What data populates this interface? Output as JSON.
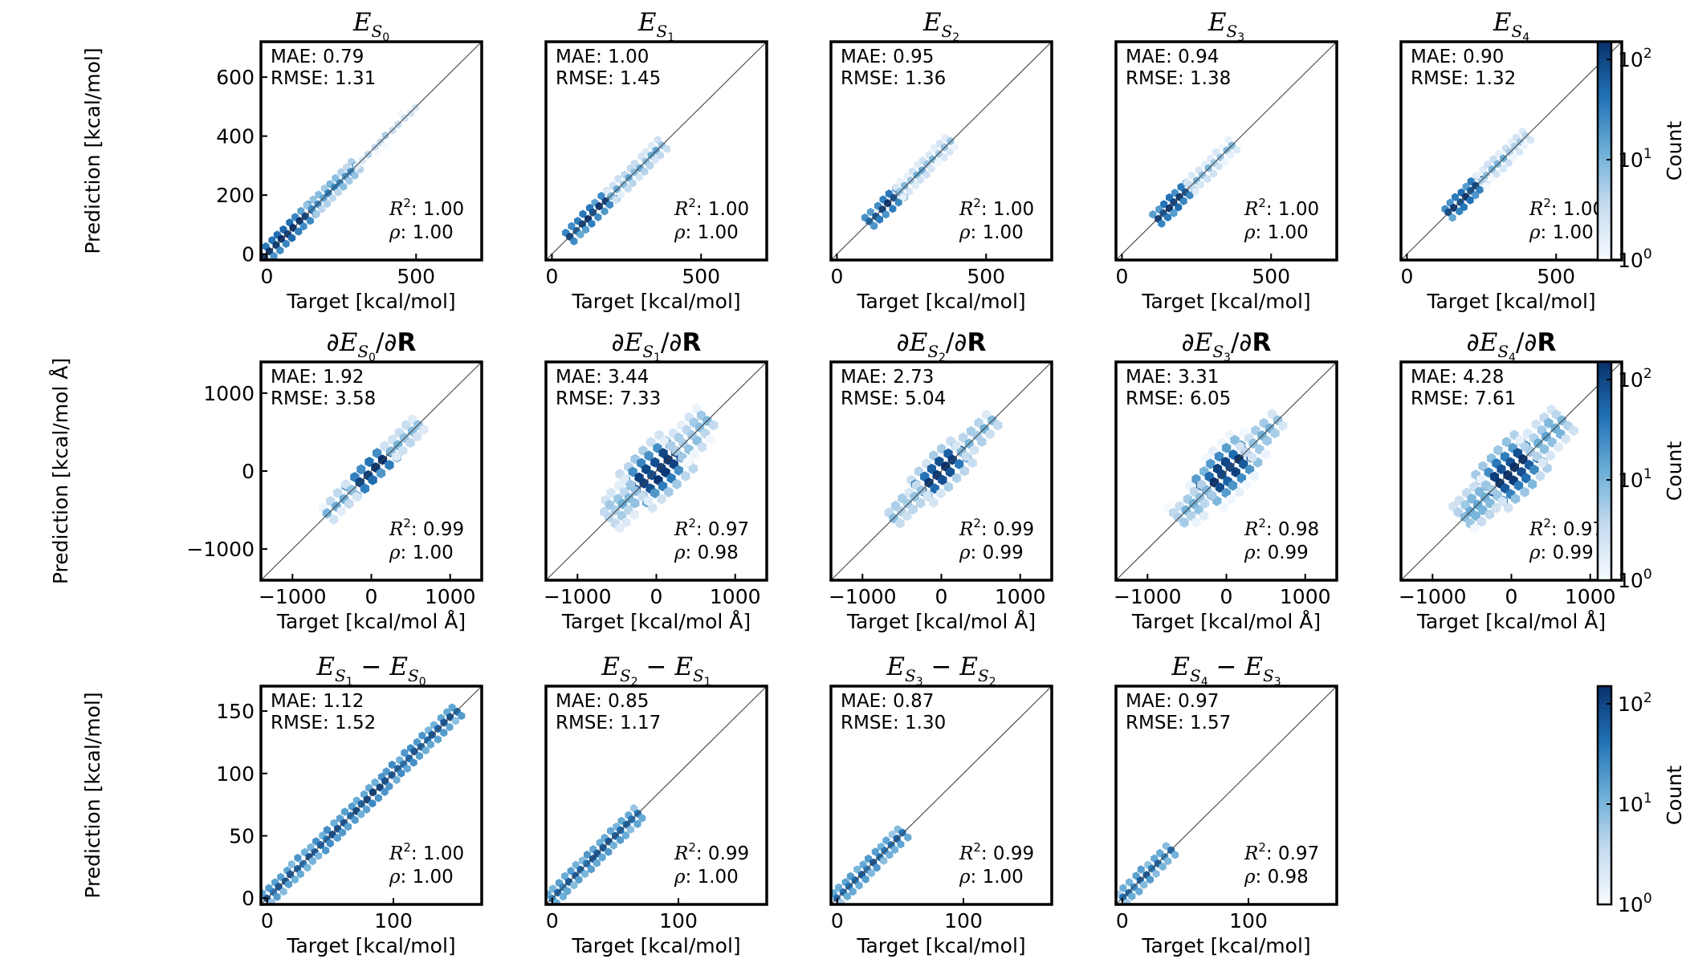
{
  "figure": {
    "rows": [
      {
        "xlabel": "Target [kcal/mol]",
        "ylabel": "Prediction [kcal/mol]"
      },
      {
        "xlabel": "Target [kcal/mol Å]",
        "ylabel": "Prediction [kcal/mol Å]"
      },
      {
        "xlabel": "Target [kcal/mol]",
        "ylabel": "Prediction [kcal/mol]"
      }
    ],
    "colorbar": {
      "label": "Count",
      "ticks": [
        {
          "base": "10",
          "exp": "0"
        },
        {
          "base": "10",
          "exp": "1"
        },
        {
          "base": "10",
          "exp": "2"
        }
      ],
      "scale": "log",
      "range": [
        1,
        150
      ],
      "cmap": [
        "#f7fbff",
        "#c6dbef",
        "#6baed6",
        "#2171b5",
        "#08306b"
      ]
    }
  },
  "chart_data": [
    {
      "type": "hexbin",
      "row": 0,
      "col": 0,
      "title": {
        "pre": "",
        "main": "E",
        "sub": "S",
        "subsub": "0",
        "post": ""
      },
      "stats": {
        "mae": "MAE: 0.79",
        "rmse": "RMSE: 1.31",
        "r2": "1.00",
        "rho": "1.00"
      },
      "xlim": [
        -20,
        720
      ],
      "ylim": [
        -20,
        720
      ],
      "xticks": [
        "0",
        "500"
      ],
      "xtickvals": [
        0,
        500
      ],
      "yticks": [
        "0",
        "200",
        "400",
        "600"
      ],
      "ytickvals": [
        0,
        200,
        400,
        600
      ],
      "segments": [
        [
          -10,
          150,
          150
        ],
        [
          150,
          300,
          30
        ],
        [
          300,
          500,
          4
        ]
      ]
    },
    {
      "type": "hexbin",
      "row": 0,
      "col": 1,
      "title": {
        "pre": "",
        "main": "E",
        "sub": "S",
        "subsub": "1",
        "post": ""
      },
      "stats": {
        "mae": "MAE: 1.00",
        "rmse": "RMSE: 1.45",
        "r2": "1.00",
        "rho": "1.00"
      },
      "xlim": [
        -20,
        720
      ],
      "ylim": [
        -20,
        720
      ],
      "xticks": [
        "0",
        "500"
      ],
      "xtickvals": [
        0,
        500
      ],
      "yticks": [],
      "ytickvals": [],
      "segments": [
        [
          60,
          200,
          120
        ],
        [
          200,
          370,
          15
        ]
      ]
    },
    {
      "type": "hexbin",
      "row": 0,
      "col": 2,
      "title": {
        "pre": "",
        "main": "E",
        "sub": "S",
        "subsub": "2",
        "post": ""
      },
      "stats": {
        "mae": "MAE: 0.95",
        "rmse": "RMSE: 1.36",
        "r2": "1.00",
        "rho": "1.00"
      },
      "xlim": [
        -20,
        720
      ],
      "ylim": [
        -20,
        720
      ],
      "xticks": [
        "0",
        "500"
      ],
      "xtickvals": [
        0,
        500
      ],
      "yticks": [],
      "ytickvals": [],
      "segments": [
        [
          110,
          210,
          140
        ],
        [
          210,
          380,
          10
        ]
      ]
    },
    {
      "type": "hexbin",
      "row": 0,
      "col": 3,
      "title": {
        "pre": "",
        "main": "E",
        "sub": "S",
        "subsub": "3",
        "post": ""
      },
      "stats": {
        "mae": "MAE: 0.94",
        "rmse": "RMSE: 1.38",
        "r2": "1.00",
        "rho": "1.00"
      },
      "xlim": [
        -20,
        720
      ],
      "ylim": [
        -20,
        720
      ],
      "xticks": [
        "0",
        "500"
      ],
      "xtickvals": [
        0,
        500
      ],
      "yticks": [],
      "ytickvals": [],
      "segments": [
        [
          120,
          230,
          140
        ],
        [
          230,
          370,
          10
        ]
      ]
    },
    {
      "type": "hexbin",
      "row": 0,
      "col": 4,
      "title": {
        "pre": "",
        "main": "E",
        "sub": "S",
        "subsub": "4",
        "post": ""
      },
      "stats": {
        "mae": "MAE: 0.90",
        "rmse": "RMSE: 1.32",
        "r2": "1.00",
        "rho": "1.00"
      },
      "xlim": [
        -20,
        720
      ],
      "ylim": [
        -20,
        720
      ],
      "xticks": [
        "0",
        "500"
      ],
      "xtickvals": [
        0,
        500
      ],
      "yticks": [],
      "ytickvals": [],
      "segments": [
        [
          140,
          250,
          140
        ],
        [
          250,
          400,
          10
        ]
      ]
    },
    {
      "type": "hexbin",
      "row": 1,
      "col": 0,
      "title": {
        "pre": "∂",
        "main": "E",
        "sub": "S",
        "subsub": "0",
        "post": "/∂R"
      },
      "stats": {
        "mae": "MAE: 1.92",
        "rmse": "RMSE: 3.58",
        "r2": "0.99",
        "rho": "1.00"
      },
      "xlim": [
        -1400,
        1400
      ],
      "ylim": [
        -1400,
        1400
      ],
      "xticks": [
        "−1000",
        "0",
        "1000"
      ],
      "xtickvals": [
        -1000,
        0,
        1000
      ],
      "yticks": [
        "−1000",
        "0",
        "1000"
      ],
      "ytickvals": [
        -1000,
        0,
        1000
      ],
      "segments": [
        [
          -250,
          250,
          150
        ],
        [
          -550,
          -250,
          12
        ],
        [
          250,
          600,
          12
        ]
      ],
      "spread": 70
    },
    {
      "type": "hexbin",
      "row": 1,
      "col": 1,
      "title": {
        "pre": "∂",
        "main": "E",
        "sub": "S",
        "subsub": "1",
        "post": "/∂R"
      },
      "stats": {
        "mae": "MAE: 3.44",
        "rmse": "RMSE: 7.33",
        "r2": "0.97",
        "rho": "0.98"
      },
      "xlim": [
        -1400,
        1400
      ],
      "ylim": [
        -1400,
        1400
      ],
      "xticks": [
        "−1000",
        "0",
        "1000"
      ],
      "xtickvals": [
        -1000,
        0,
        1000
      ],
      "yticks": [],
      "ytickvals": [],
      "segments": [
        [
          -250,
          250,
          150
        ],
        [
          -600,
          -250,
          10
        ],
        [
          250,
          650,
          10
        ]
      ],
      "spread": 150
    },
    {
      "type": "hexbin",
      "row": 1,
      "col": 2,
      "title": {
        "pre": "∂",
        "main": "E",
        "sub": "S",
        "subsub": "2",
        "post": "/∂R"
      },
      "stats": {
        "mae": "MAE: 2.73",
        "rmse": "RMSE: 5.04",
        "r2": "0.99",
        "rho": "0.99"
      },
      "xlim": [
        -1400,
        1400
      ],
      "ylim": [
        -1400,
        1400
      ],
      "xticks": [
        "−1000",
        "0",
        "1000"
      ],
      "xtickvals": [
        -1000,
        0,
        1000
      ],
      "yticks": [],
      "ytickvals": [],
      "segments": [
        [
          -250,
          250,
          150
        ],
        [
          -600,
          -250,
          10
        ],
        [
          250,
          650,
          10
        ]
      ],
      "spread": 100
    },
    {
      "type": "hexbin",
      "row": 1,
      "col": 3,
      "title": {
        "pre": "∂",
        "main": "E",
        "sub": "S",
        "subsub": "3",
        "post": "/∂R"
      },
      "stats": {
        "mae": "MAE: 3.31",
        "rmse": "RMSE: 6.05",
        "r2": "0.98",
        "rho": "0.99"
      },
      "xlim": [
        -1400,
        1400
      ],
      "ylim": [
        -1400,
        1400
      ],
      "xticks": [
        "−1000",
        "0",
        "1000"
      ],
      "xtickvals": [
        -1000,
        0,
        1000
      ],
      "yticks": [],
      "ytickvals": [],
      "segments": [
        [
          -250,
          250,
          150
        ],
        [
          -600,
          -250,
          10
        ],
        [
          250,
          650,
          10
        ]
      ],
      "spread": 130
    },
    {
      "type": "hexbin",
      "row": 1,
      "col": 4,
      "title": {
        "pre": "∂",
        "main": "E",
        "sub": "S",
        "subsub": "4",
        "post": "/∂R"
      },
      "stats": {
        "mae": "MAE: 4.28",
        "rmse": "RMSE: 7.61",
        "r2": "0.97",
        "rho": "0.99"
      },
      "xlim": [
        -1400,
        1400
      ],
      "ylim": [
        -1400,
        1400
      ],
      "xticks": [
        "−1000",
        "0",
        "1000"
      ],
      "xtickvals": [
        -1000,
        0,
        1000
      ],
      "yticks": [],
      "ytickvals": [],
      "segments": [
        [
          -250,
          250,
          150
        ],
        [
          -600,
          -250,
          12
        ],
        [
          250,
          650,
          12
        ]
      ],
      "spread": 160
    },
    {
      "type": "hexbin",
      "row": 2,
      "col": 0,
      "title": {
        "main": "E",
        "sub": "S",
        "subsub": "1",
        "minus": " − ",
        "main2": "E",
        "sub2": "S",
        "subsub2": "0"
      },
      "stats": {
        "mae": "MAE: 1.12",
        "rmse": "RMSE: 1.52",
        "r2": "1.00",
        "rho": "1.00"
      },
      "xlim": [
        -5,
        170
      ],
      "ylim": [
        -5,
        170
      ],
      "xticks": [
        "0",
        "100"
      ],
      "xtickvals": [
        0,
        100
      ],
      "yticks": [
        "0",
        "50",
        "100",
        "150"
      ],
      "ytickvals": [
        0,
        50,
        100,
        150
      ],
      "segments": [
        [
          0,
          150,
          80
        ]
      ],
      "spread": 3
    },
    {
      "type": "hexbin",
      "row": 2,
      "col": 1,
      "title": {
        "main": "E",
        "sub": "S",
        "subsub": "2",
        "minus": " − ",
        "main2": "E",
        "sub2": "S",
        "subsub2": "1"
      },
      "stats": {
        "mae": "MAE: 0.85",
        "rmse": "RMSE: 1.17",
        "r2": "0.99",
        "rho": "1.00"
      },
      "xlim": [
        -5,
        170
      ],
      "ylim": [
        -5,
        170
      ],
      "xticks": [
        "0",
        "100"
      ],
      "xtickvals": [
        0,
        100
      ],
      "yticks": [],
      "ytickvals": [],
      "segments": [
        [
          0,
          68,
          60
        ]
      ],
      "spread": 1
    },
    {
      "type": "hexbin",
      "row": 2,
      "col": 2,
      "title": {
        "main": "E",
        "sub": "S",
        "subsub": "3",
        "minus": " − ",
        "main2": "E",
        "sub2": "S",
        "subsub2": "2"
      },
      "stats": {
        "mae": "MAE: 0.87",
        "rmse": "RMSE: 1.30",
        "r2": "0.99",
        "rho": "1.00"
      },
      "xlim": [
        -5,
        170
      ],
      "ylim": [
        -5,
        170
      ],
      "xticks": [
        "0",
        "100"
      ],
      "xtickvals": [
        0,
        100
      ],
      "yticks": [],
      "ytickvals": [],
      "segments": [
        [
          0,
          52,
          60
        ]
      ],
      "spread": 1
    },
    {
      "type": "hexbin",
      "row": 2,
      "col": 3,
      "title": {
        "main": "E",
        "sub": "S",
        "subsub": "4",
        "minus": " − ",
        "main2": "E",
        "sub2": "S",
        "subsub2": "3"
      },
      "stats": {
        "mae": "MAE: 0.97",
        "rmse": "RMSE: 1.57",
        "r2": "0.97",
        "rho": "0.98"
      },
      "xlim": [
        -5,
        170
      ],
      "ylim": [
        -5,
        170
      ],
      "xticks": [
        "0",
        "100"
      ],
      "xtickvals": [
        0,
        100
      ],
      "yticks": [],
      "ytickvals": [],
      "segments": [
        [
          0,
          38,
          50
        ]
      ],
      "spread": 1.5
    }
  ]
}
